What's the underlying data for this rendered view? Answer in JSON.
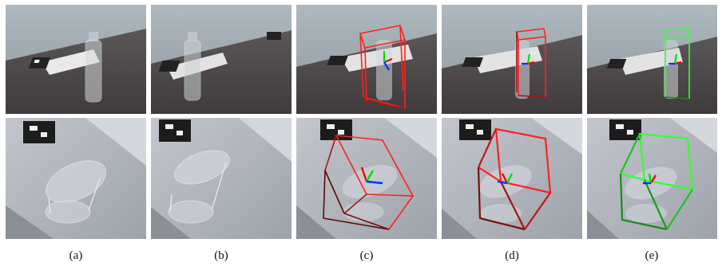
{
  "captions": [
    "(a)",
    "(b)",
    "(c)",
    "(d)",
    "(e)"
  ],
  "colors": {
    "box_red": "#ff2020",
    "box_dark_red": "#8a1010",
    "box_green": "#33ff33",
    "box_dark_green": "#1a8a1a",
    "axis_x": "#ff0000",
    "axis_y": "#00e000",
    "axis_z": "#0030ff",
    "table_dark": "#4a4748",
    "wall_gray": "#9aa6ad",
    "marble": "#b9bcc3",
    "glass": "#d9dde3"
  }
}
